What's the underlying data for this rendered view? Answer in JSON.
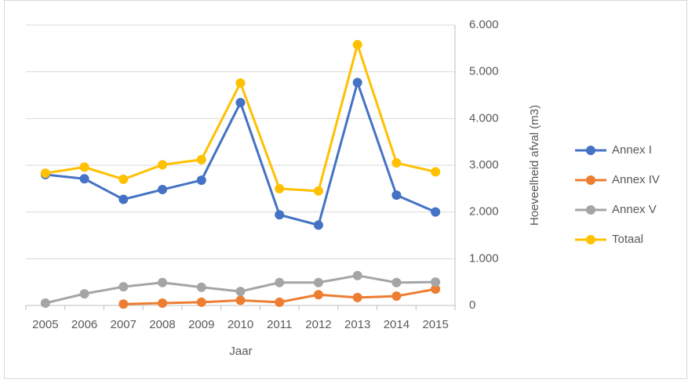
{
  "chart_data": {
    "type": "line",
    "x_label": "Jaar",
    "y_label": "Hoeveelheid afval (m3)",
    "categories": [
      "2005",
      "2006",
      "2007",
      "2008",
      "2009",
      "2010",
      "2011",
      "2012",
      "2013",
      "2014",
      "2015"
    ],
    "series": [
      {
        "name": "Annex I",
        "color": "#4472c4",
        "values": [
          2800,
          2710,
          2270,
          2480,
          2680,
          4340,
          1940,
          1720,
          4770,
          2360,
          2000
        ]
      },
      {
        "name": "Annex IV",
        "color": "#ed7d31",
        "values": [
          null,
          null,
          30,
          50,
          70,
          110,
          70,
          230,
          170,
          200,
          350
        ]
      },
      {
        "name": "Annex V",
        "color": "#a5a5a5",
        "values": [
          50,
          250,
          400,
          490,
          390,
          300,
          490,
          490,
          640,
          490,
          500
        ]
      },
      {
        "name": "Totaal",
        "color": "#ffc000",
        "values": [
          2830,
          2960,
          2700,
          3010,
          3120,
          4760,
          2500,
          2450,
          5580,
          3050,
          2860
        ]
      }
    ],
    "ylim": [
      0,
      6000
    ],
    "yticks": [
      0,
      {
        "value": 1000,
        "label": "1.000"
      },
      {
        "value": 2000,
        "label": "2.000"
      },
      {
        "value": 3000,
        "label": "3.000"
      },
      {
        "value": 4000,
        "label": "4.000"
      },
      {
        "value": 5000,
        "label": "5.000"
      },
      {
        "value": 6000,
        "label": "6.000"
      }
    ],
    "y_axis_side": "right",
    "grid": true,
    "legend": "right"
  }
}
